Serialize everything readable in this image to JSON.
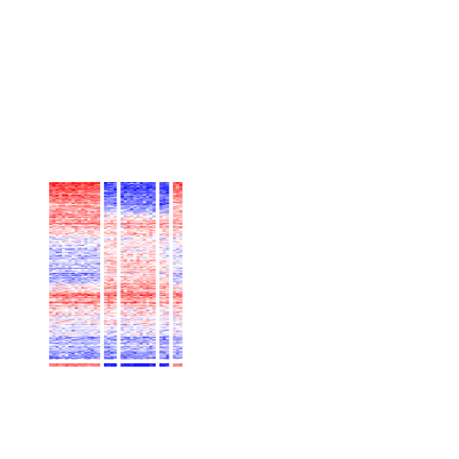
{
  "chart_data": {
    "type": "heatmap",
    "title": "",
    "xlabel": "",
    "ylabel": "",
    "legend": "none",
    "grid": false,
    "colors": {
      "low": "#0000ff",
      "mid": "#ffffff",
      "high": "#ff0000"
    },
    "value_range": [
      -1,
      1
    ],
    "column_groups": [
      {
        "columns": 16
      },
      {
        "columns": 4
      },
      {
        "columns": 11
      },
      {
        "columns": 3
      },
      {
        "columns": 3
      }
    ],
    "row_groups": [
      {
        "rows": 170
      },
      {
        "rows": 3
      }
    ],
    "band_profile": [
      {
        "row_fraction": 0.0,
        "group_means": [
          0.75,
          -0.85,
          -0.85,
          -0.85,
          0.65
        ]
      },
      {
        "row_fraction": 0.16,
        "group_means": [
          0.35,
          -0.3,
          -0.35,
          -0.4,
          0.25
        ]
      },
      {
        "row_fraction": 0.22,
        "group_means": [
          0.4,
          0.25,
          0.3,
          0.3,
          0.35
        ]
      },
      {
        "row_fraction": 0.38,
        "group_means": [
          -0.2,
          0.1,
          0.05,
          -0.1,
          -0.15
        ]
      },
      {
        "row_fraction": 0.55,
        "group_means": [
          -0.3,
          0.25,
          0.25,
          0.1,
          -0.2
        ]
      },
      {
        "row_fraction": 0.64,
        "group_means": [
          0.45,
          0.4,
          0.45,
          0.35,
          0.4
        ]
      },
      {
        "row_fraction": 0.78,
        "group_means": [
          0.05,
          0.15,
          0.1,
          0.05,
          0.05
        ]
      },
      {
        "row_fraction": 0.88,
        "group_means": [
          -0.25,
          -0.3,
          -0.25,
          -0.3,
          -0.2
        ]
      },
      {
        "row_fraction": 1.0,
        "group_means": [
          -0.35,
          -0.4,
          -0.35,
          -0.4,
          -0.3
        ]
      }
    ],
    "bottom_group_means": [
      0.55,
      -0.95,
      -0.95,
      -0.95,
      0.5
    ]
  }
}
